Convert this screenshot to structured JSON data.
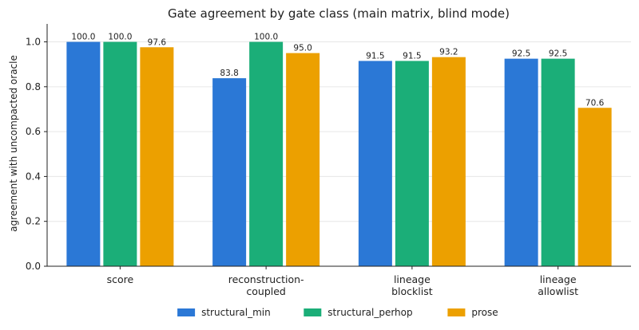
{
  "chart_data": {
    "type": "bar",
    "title": "Gate agreement by gate class (main matrix, blind mode)",
    "xlabel": "",
    "ylabel": "agreement with uncompacted oracle",
    "ylim": [
      0,
      1.08
    ],
    "yticks": [
      "0.0",
      "0.2",
      "0.4",
      "0.6",
      "0.8",
      "1.0"
    ],
    "grid": true,
    "legend_position": "bottom-center",
    "categories": [
      [
        "score"
      ],
      [
        "reconstruction-",
        "coupled"
      ],
      [
        "lineage",
        "blocklist"
      ],
      [
        "lineage",
        "allowlist"
      ]
    ],
    "series": [
      {
        "name": "structural_min",
        "color": "#2b78d6",
        "values": [
          1.0,
          0.838,
          0.915,
          0.925
        ],
        "labels": [
          "100.0",
          "83.8",
          "91.5",
          "92.5"
        ]
      },
      {
        "name": "structural_perhop",
        "color": "#1bae78",
        "values": [
          1.0,
          1.0,
          0.915,
          0.925
        ],
        "labels": [
          "100.0",
          "100.0",
          "91.5",
          "92.5"
        ]
      },
      {
        "name": "prose",
        "color": "#eca000",
        "values": [
          0.976,
          0.95,
          0.932,
          0.706
        ],
        "labels": [
          "97.6",
          "95.0",
          "93.2",
          "70.6"
        ]
      }
    ]
  }
}
